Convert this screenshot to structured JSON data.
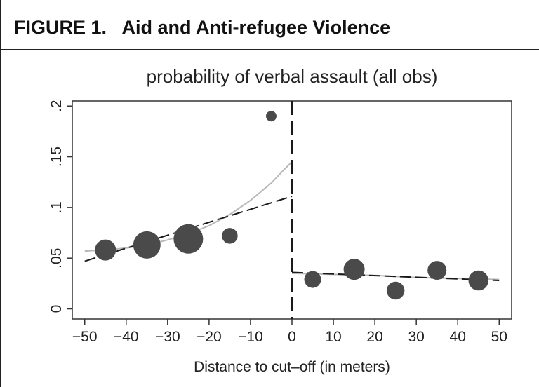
{
  "figure": {
    "label": "FIGURE 1.",
    "caption": "Aid and Anti-refugee Violence"
  },
  "chart_data": {
    "type": "scatter",
    "title": "probability of verbal assault (all obs)",
    "xlabel": "Distance to cut–off (in meters)",
    "ylabel": "",
    "xlim": [
      -53,
      53
    ],
    "ylim": [
      -0.01,
      0.205
    ],
    "xticks": [
      -50,
      -40,
      -30,
      -20,
      -10,
      0,
      10,
      20,
      30,
      40,
      50
    ],
    "xtick_labels": [
      "−50",
      "−40",
      "−30",
      "−20",
      "−10",
      "0",
      "10",
      "20",
      "30",
      "40",
      "50"
    ],
    "yticks": [
      0,
      0.05,
      0.1,
      0.15,
      0.2
    ],
    "ytick_labels": [
      "0",
      ".05",
      ".1",
      ".15",
      ".2"
    ],
    "cutoff": 0,
    "grid": false,
    "colors": {
      "points": "#4a4a4a",
      "linear_fit": "#1a1a1a",
      "poly_fit": "#b8b8b8",
      "cutoff_line": "#1a1a1a"
    },
    "points": [
      {
        "x": -45,
        "y": 0.058,
        "weight": 0.6
      },
      {
        "x": -35,
        "y": 0.063,
        "weight": 0.9
      },
      {
        "x": -25,
        "y": 0.069,
        "weight": 1.0
      },
      {
        "x": -15,
        "y": 0.072,
        "weight": 0.35
      },
      {
        "x": -5,
        "y": 0.19,
        "weight": 0.1
      },
      {
        "x": 5,
        "y": 0.029,
        "weight": 0.4
      },
      {
        "x": 15,
        "y": 0.039,
        "weight": 0.6
      },
      {
        "x": 25,
        "y": 0.018,
        "weight": 0.45
      },
      {
        "x": 35,
        "y": 0.038,
        "weight": 0.5
      },
      {
        "x": 45,
        "y": 0.028,
        "weight": 0.55
      }
    ],
    "fits": [
      {
        "kind": "linear",
        "segment": "left",
        "x": [
          -50,
          0
        ],
        "y": [
          0.047,
          0.111
        ]
      },
      {
        "kind": "linear",
        "segment": "right",
        "x": [
          0,
          50
        ],
        "y": [
          0.036,
          0.028
        ]
      },
      {
        "kind": "polynomial",
        "segment": "left",
        "x": [
          -50,
          -45,
          -40,
          -35,
          -30,
          -25,
          -20,
          -15,
          -10,
          -5,
          -2,
          0
        ],
        "y": [
          0.057,
          0.058,
          0.06,
          0.063,
          0.068,
          0.074,
          0.082,
          0.093,
          0.107,
          0.124,
          0.137,
          0.145
        ]
      },
      {
        "kind": "polynomial",
        "segment": "right",
        "x": [
          0,
          10,
          20,
          30,
          40,
          50
        ],
        "y": [
          0.035,
          0.034,
          0.033,
          0.031,
          0.03,
          0.029
        ]
      }
    ]
  }
}
